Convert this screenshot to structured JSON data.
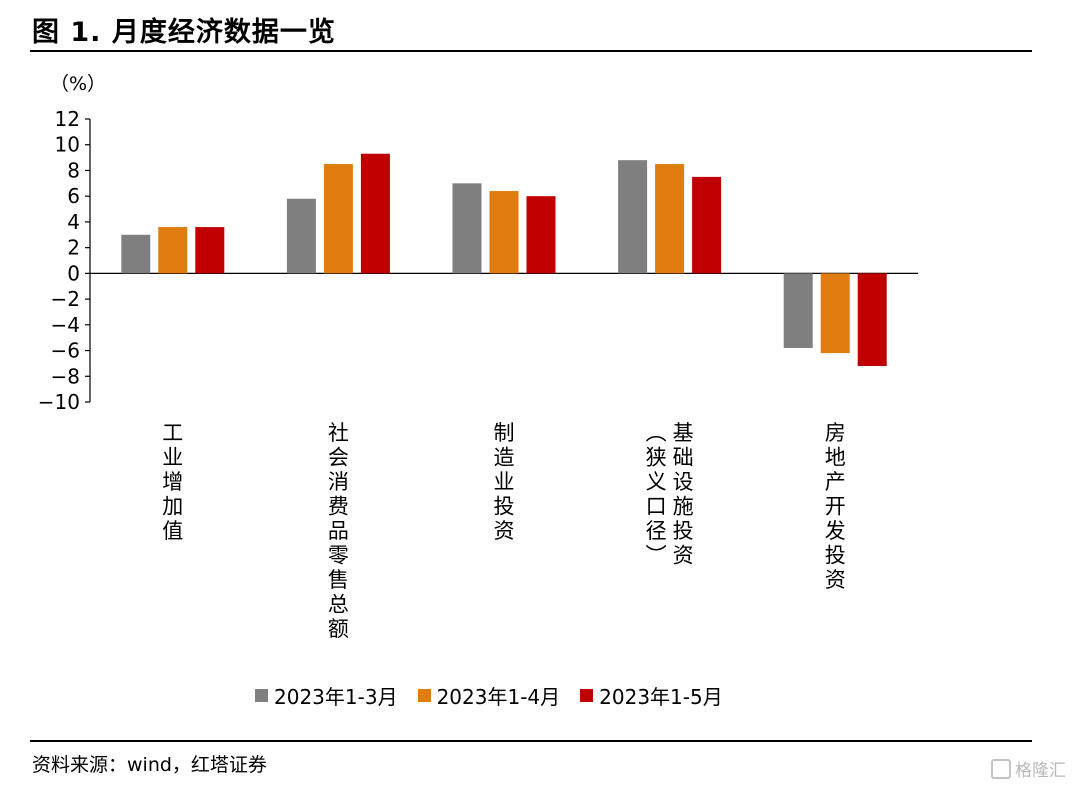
{
  "header": {
    "title": "图 1. 月度经济数据一览"
  },
  "footer": {
    "source": "资料来源：wind，红塔证券",
    "watermark": "格隆汇"
  },
  "chart_data": {
    "type": "bar",
    "unit_label": "（%）",
    "ylim": [
      -10,
      12
    ],
    "yticks": [
      12,
      10,
      8,
      6,
      4,
      2,
      0,
      -2,
      -4,
      -6,
      -8,
      -10
    ],
    "ytick_labels": [
      "12",
      "10",
      "8",
      "6",
      "4",
      "2",
      "0",
      "−2",
      "−4",
      "−6",
      "−8",
      "−10"
    ],
    "categories": [
      "工业增加值",
      "社会消费品零售总额",
      "制造业投资",
      "基础设施投资（狭义口径）",
      "房地产开发投资"
    ],
    "category_columns": [
      [
        "工业增加值"
      ],
      [
        "社会消费品零售总额"
      ],
      [
        "制造业投资"
      ],
      [
        "（狭义口径）",
        "基础设施投资"
      ],
      [
        "房地产开发投资"
      ]
    ],
    "series": [
      {
        "name": "2023年1-3月",
        "color": "#7f7f7f",
        "values": [
          3.0,
          5.8,
          7.0,
          8.8,
          -5.8
        ]
      },
      {
        "name": "2023年1-4月",
        "color": "#e07d10",
        "values": [
          3.6,
          8.5,
          6.4,
          8.5,
          -6.2
        ]
      },
      {
        "name": "2023年1-5月",
        "color": "#c00000",
        "values": [
          3.6,
          9.3,
          6.0,
          7.5,
          -7.2
        ]
      }
    ],
    "grid": false,
    "legend_position": "bottom"
  }
}
